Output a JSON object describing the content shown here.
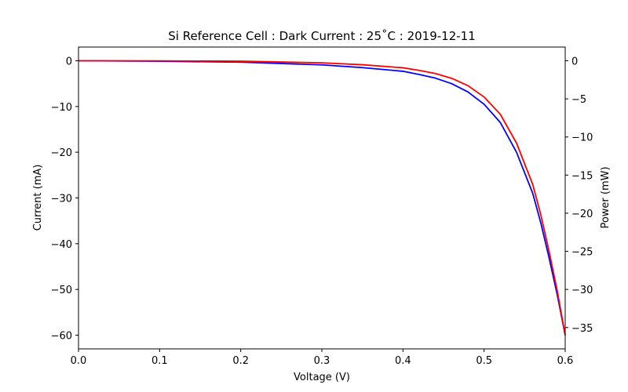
{
  "chart_data": {
    "type": "line",
    "title": "Si Reference Cell : Dark Current : 25˚C : 2019-12-11",
    "xlabel": "Voltage (V)",
    "ylabel": "Current (mA)",
    "y2label": "Power (mW)",
    "xlim": [
      0.0,
      0.6
    ],
    "ylim": [
      -63,
      3
    ],
    "y2lim": [
      -37.8,
      1.8
    ],
    "x_ticks": [
      "0.0",
      "0.1",
      "0.2",
      "0.3",
      "0.4",
      "0.5",
      "0.6"
    ],
    "y_ticks": [
      "0",
      "−10",
      "−20",
      "−30",
      "−40",
      "−50",
      "−60"
    ],
    "y2_ticks": [
      "0",
      "−5",
      "−10",
      "−15",
      "−20",
      "−25",
      "−30",
      "−35"
    ],
    "grid": false,
    "series": [
      {
        "axis": "left",
        "color": "#0000ff",
        "x": [
          0.0,
          0.1,
          0.2,
          0.3,
          0.35,
          0.4,
          0.42,
          0.44,
          0.46,
          0.48,
          0.5,
          0.52,
          0.54,
          0.56,
          0.57,
          0.58,
          0.59,
          0.6
        ],
        "y": [
          0.0,
          -0.1,
          -0.3,
          -0.9,
          -1.5,
          -2.3,
          -3.0,
          -3.8,
          -5.0,
          -6.8,
          -9.5,
          -13.5,
          -20.0,
          -29.0,
          -35.5,
          -43.0,
          -51.0,
          -60.0
        ]
      },
      {
        "axis": "right",
        "color": "#ff0000",
        "x": [
          0.0,
          0.1,
          0.2,
          0.3,
          0.35,
          0.4,
          0.42,
          0.44,
          0.46,
          0.48,
          0.5,
          0.52,
          0.54,
          0.56,
          0.57,
          0.58,
          0.59,
          0.6
        ],
        "y": [
          0.0,
          -0.01,
          -0.06,
          -0.27,
          -0.52,
          -0.92,
          -1.26,
          -1.67,
          -2.3,
          -3.26,
          -4.75,
          -7.02,
          -10.8,
          -16.24,
          -20.24,
          -24.94,
          -30.09,
          -36.0
        ]
      }
    ]
  }
}
